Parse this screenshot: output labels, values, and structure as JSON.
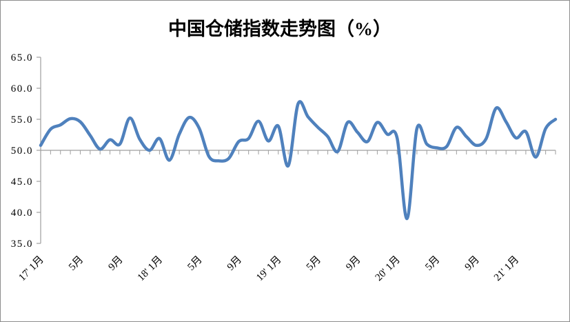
{
  "title": "中国仓储指数走势图（%）",
  "chart_data": {
    "type": "line",
    "series_name": "中国仓储指数",
    "line_color": "#4F81BD",
    "axis_color": "#9e9e9e",
    "text_color": "#000000",
    "ylim": [
      35.0,
      65.0
    ],
    "ytick_step": 5,
    "ytick_labels": [
      "35.0",
      "40.0",
      "45.0",
      "50.0",
      "55.0",
      "60.0",
      "65.0"
    ],
    "x_axis_cross_value": 50.0,
    "grid": "off",
    "legend": "none",
    "xtick_label_every": 4,
    "xtick_labels_visible": [
      "17' 1月",
      "5月",
      "9月",
      "18' 1月",
      "5月",
      "9月",
      "19' 1月",
      "5月",
      "9月",
      "20' 1月",
      "5月",
      "9月",
      "21' 1月"
    ],
    "categories": [
      "2017-01",
      "2017-02",
      "2017-03",
      "2017-04",
      "2017-05",
      "2017-06",
      "2017-07",
      "2017-08",
      "2017-09",
      "2017-10",
      "2017-11",
      "2017-12",
      "2018-01",
      "2018-02",
      "2018-03",
      "2018-04",
      "2018-05",
      "2018-06",
      "2018-07",
      "2018-08",
      "2018-09",
      "2018-10",
      "2018-11",
      "2018-12",
      "2019-01",
      "2019-02",
      "2019-03",
      "2019-04",
      "2019-05",
      "2019-06",
      "2019-07",
      "2019-08",
      "2019-09",
      "2019-10",
      "2019-11",
      "2019-12",
      "2020-01",
      "2020-02",
      "2020-03",
      "2020-04",
      "2020-05",
      "2020-06",
      "2020-07",
      "2020-08",
      "2020-09",
      "2020-10",
      "2020-11",
      "2020-12",
      "2021-01",
      "2021-02",
      "2021-03",
      "2021-04",
      "2021-05"
    ],
    "values": [
      50.8,
      53.4,
      54.1,
      55.1,
      54.6,
      52.4,
      50.2,
      51.7,
      51.0,
      55.2,
      51.8,
      50.0,
      51.9,
      48.4,
      52.6,
      55.3,
      53.6,
      49.0,
      48.3,
      48.7,
      51.4,
      51.9,
      54.7,
      51.5,
      53.9,
      47.5,
      57.5,
      55.4,
      53.7,
      52.2,
      49.8,
      54.5,
      52.9,
      51.4,
      54.5,
      52.6,
      52.0,
      39.0,
      53.5,
      51.0,
      50.4,
      50.6,
      53.7,
      52.2,
      50.8,
      51.9,
      56.8,
      54.6,
      52.0,
      53.0,
      48.9,
      53.5,
      55.0
    ]
  }
}
